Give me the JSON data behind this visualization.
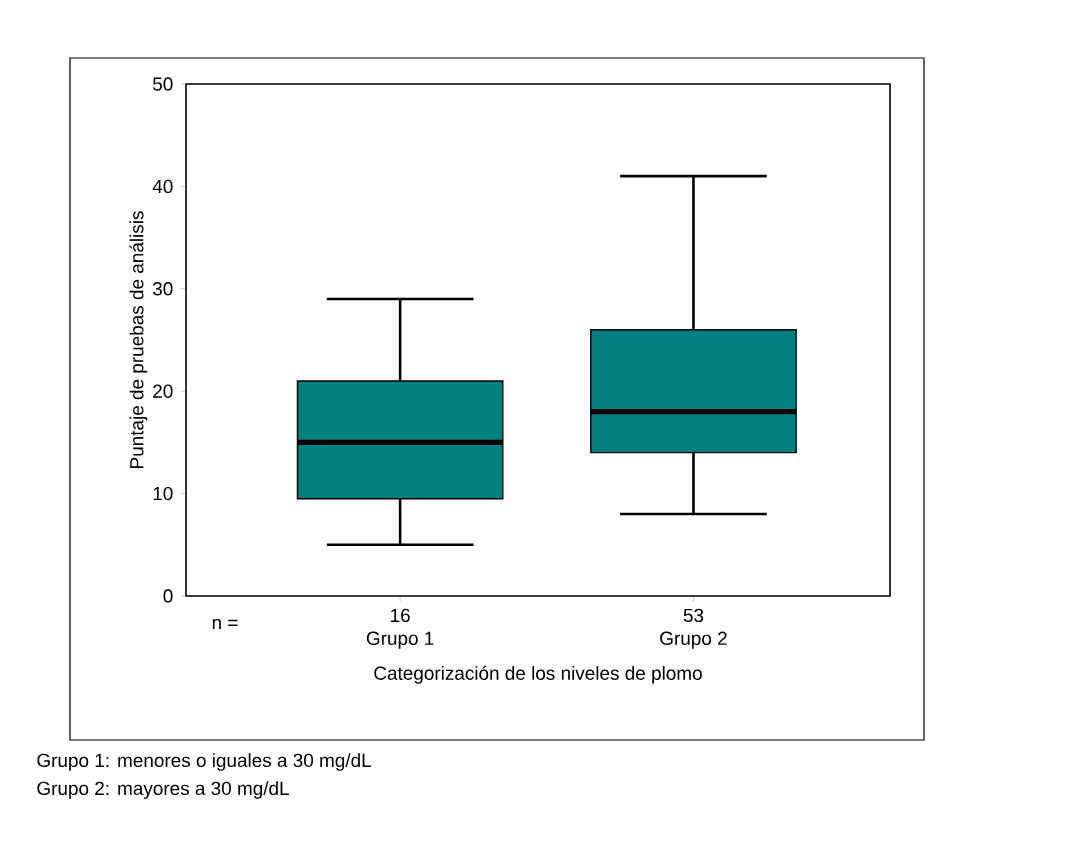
{
  "chart_data": {
    "type": "box",
    "xlabel": "Categorización de los niveles de plomo",
    "ylabel": "Puntaje de pruebas de análisis",
    "categories": [
      "Grupo 1",
      "Grupo 2"
    ],
    "boxes": [
      {
        "low": 5,
        "q1": 9.5,
        "median": 15,
        "q3": 21,
        "high": 29
      },
      {
        "low": 8,
        "q1": 14,
        "median": 18,
        "q3": 26,
        "high": 41
      }
    ],
    "color": "#008080",
    "ylim": [
      0,
      50
    ],
    "yticks": [
      0,
      10,
      20,
      30,
      40,
      50
    ],
    "grid": false,
    "annotations": [
      "n =",
      "16",
      "53",
      "Grupo 1: menores o iguales a 30 mg/dL",
      "Grupo 2: mayores a 30 mg/dL"
    ]
  }
}
